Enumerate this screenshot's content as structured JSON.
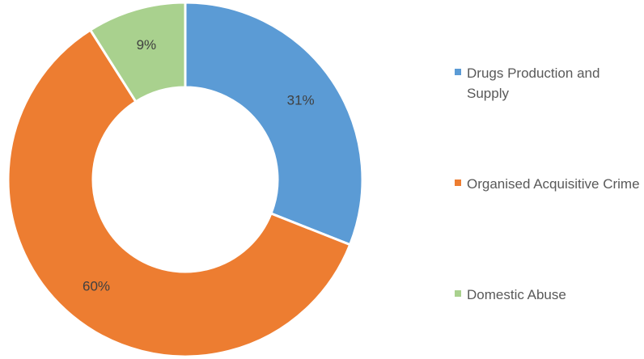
{
  "chart_data": {
    "type": "pie",
    "style": "donut",
    "title": "",
    "categories": [
      "Drugs Production and Supply",
      "Organised Acquisitive Crime",
      "Domestic Abuse"
    ],
    "values": [
      31,
      60,
      9
    ],
    "value_labels": [
      "31%",
      "60%",
      "9%"
    ],
    "colors": [
      "#5B9BD5",
      "#ED7D31",
      "#A9D18E"
    ],
    "legend_position": "right"
  }
}
